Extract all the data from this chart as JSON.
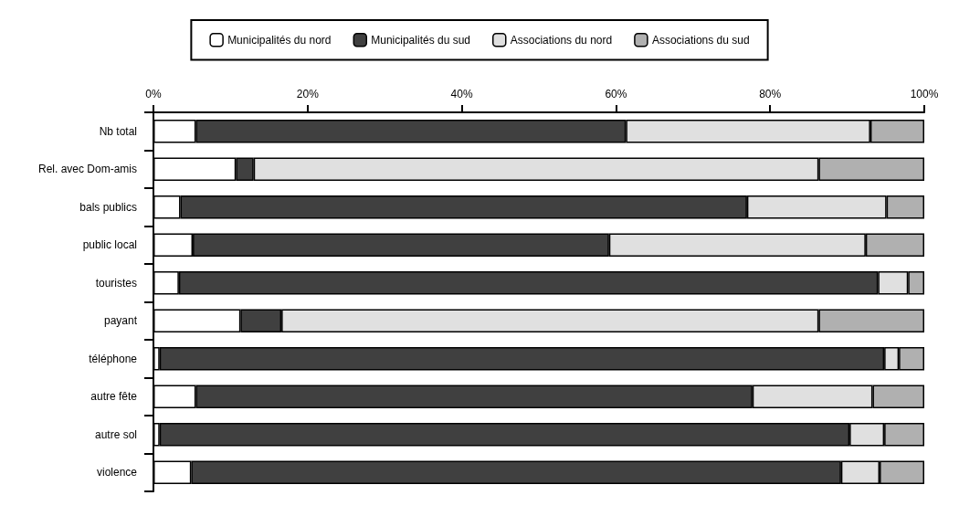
{
  "chart_data": {
    "type": "bar",
    "orientation": "horizontal",
    "stacked": true,
    "categories": [
      "Nb total",
      "Rel. avec Dom-amis",
      "bals publics",
      "public local",
      "touristes",
      "payant",
      "téléphone",
      "autre fête",
      "autre sol",
      "violence"
    ],
    "series": [
      {
        "name": "Municipalités du nord",
        "color": "#ffffff",
        "values": [
          5.5,
          10.7,
          3.5,
          5.1,
          3.3,
          11.3,
          0.8,
          5.5,
          0.8,
          4.9
        ]
      },
      {
        "name": "Municipalités du sud",
        "color": "#404040",
        "values": [
          55.8,
          2.3,
          73.5,
          54,
          90.7,
          5.3,
          94,
          72.2,
          89.5,
          84.3
        ]
      },
      {
        "name": "Associations du nord",
        "color": "#e0e0e0",
        "values": [
          31.7,
          73.3,
          18.1,
          33.3,
          3.9,
          69.7,
          1.9,
          15.6,
          4.5,
          5
        ]
      },
      {
        "name": "Associations du sud",
        "color": "#b0b0b0",
        "values": [
          7,
          13.7,
          4.9,
          7.6,
          2.1,
          13.7,
          3.3,
          6.7,
          5.2,
          5.8
        ]
      }
    ],
    "xlim": [
      0,
      100
    ],
    "xticks": [
      {
        "value": 0,
        "label": "0%"
      },
      {
        "value": 20,
        "label": "20%"
      },
      {
        "value": 40,
        "label": "40%"
      },
      {
        "value": 60,
        "label": "60%"
      },
      {
        "value": 80,
        "label": "80%"
      },
      {
        "value": 100,
        "label": "100%"
      }
    ],
    "grid": false,
    "legend": "top"
  }
}
